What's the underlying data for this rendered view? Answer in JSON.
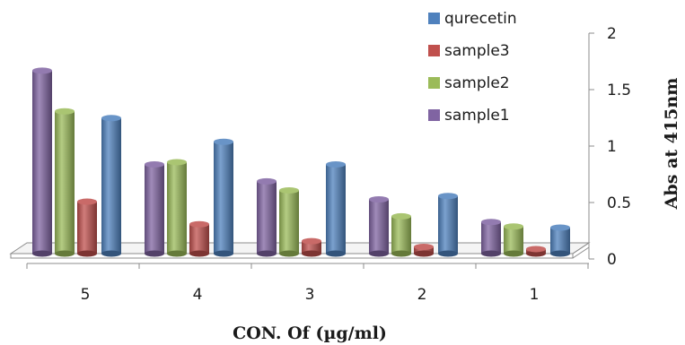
{
  "chart_data": {
    "type": "bar",
    "style": "3d-cylinder",
    "xlabel": "CON. Of (µg/ml)",
    "ylabel": "Abs at 415nm",
    "ylim": [
      0,
      2
    ],
    "yticks": [
      "0",
      "0.5",
      "1",
      "1.5",
      "2"
    ],
    "ytick_values": [
      0,
      0.5,
      1,
      1.5,
      2
    ],
    "y_axis_side": "right",
    "grid": false,
    "legend_position": "top-right",
    "categories": [
      "5",
      "4",
      "3",
      "2",
      "1"
    ],
    "series": [
      {
        "name": "sample1",
        "color": "#8064a2",
        "values": [
          1.62,
          0.79,
          0.64,
          0.48,
          0.28
        ]
      },
      {
        "name": "sample2",
        "color": "#9bbb59",
        "values": [
          1.26,
          0.81,
          0.56,
          0.33,
          0.24
        ]
      },
      {
        "name": "sample3",
        "color": "#c0504d",
        "values": [
          0.46,
          0.26,
          0.11,
          0.06,
          0.04
        ]
      },
      {
        "name": "qurecetin",
        "color": "#4f81bd",
        "values": [
          1.2,
          0.99,
          0.79,
          0.51,
          0.23
        ]
      }
    ],
    "legend_order": [
      "qurecetin",
      "sample3",
      "sample2",
      "sample1"
    ]
  }
}
